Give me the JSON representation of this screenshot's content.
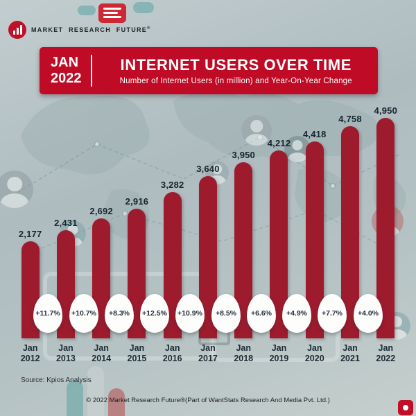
{
  "logo": {
    "brand": "MARKET RESEARCH FUTURE",
    "reg": "®"
  },
  "header": {
    "date_line1": "JAN",
    "date_line2": "2022",
    "title": "INTERNET USERS OVER TIME",
    "subtitle": "Number of Internet Users (in million) and Year-On-Year Change"
  },
  "chart_data": {
    "type": "bar",
    "title": "Internet Users Over Time",
    "subtitle": "Number of Internet Users (in million) and Year-On-Year Change",
    "categories": [
      "Jan 2012",
      "Jan 2013",
      "Jan 2014",
      "Jan 2015",
      "Jan 2016",
      "Jan 2017",
      "Jan 2018",
      "Jan 2019",
      "Jan 2020",
      "Jan 2021",
      "Jan 2022"
    ],
    "values": [
      2177,
      2431,
      2692,
      2916,
      3282,
      3640,
      3950,
      4212,
      4418,
      4758,
      4950
    ],
    "value_labels": [
      "2,177",
      "2,431",
      "2,692",
      "2,916",
      "3,282",
      "3,640",
      "3,950",
      "4,212",
      "4,418",
      "4,758",
      "4,950"
    ],
    "yoy_change": [
      "+11.7%",
      "+10.7%",
      "+8.3%",
      "+12.5%",
      "+10.9%",
      "+8.5%",
      "+6.6%",
      "+4.9%",
      "+7.7%",
      "+4.0%"
    ],
    "ylabel": "Number of Internet Users (in million)",
    "xlabel": "",
    "ylim": [
      0,
      5000
    ],
    "grid": false,
    "legend": "none",
    "bar_color": "#9e1b2e"
  },
  "footer": {
    "source": "Source: Kpios Analysis",
    "copyright": "© 2022 Market Research Future®(Part of WantStats Research And Media Pvt. Ltd.)"
  },
  "colors": {
    "header_red": "#c00b26",
    "bar_red": "#9e1b2e",
    "ink": "#18242e",
    "bg": "#b7c3c6"
  }
}
